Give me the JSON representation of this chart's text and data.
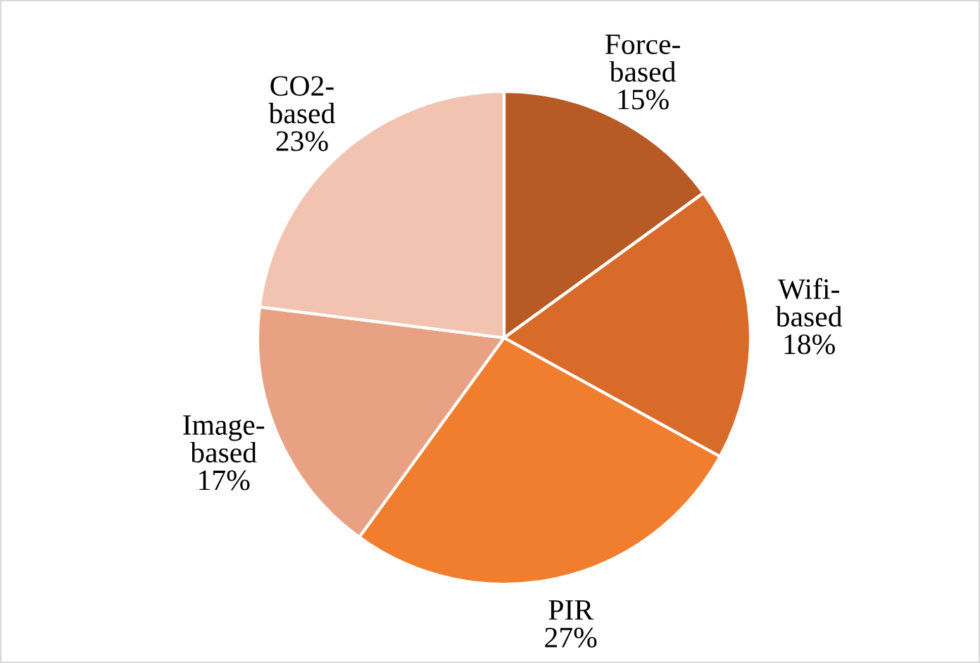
{
  "chart_data": {
    "type": "pie",
    "categories": [
      "Force-\nbased",
      "Wifi-\nbased",
      "PIR",
      "Image-\nbased",
      "CO2-\nbased"
    ],
    "values": [
      15,
      18,
      27,
      17,
      23
    ],
    "colors": [
      "#b85a25",
      "#d96b2a",
      "#f07e2e",
      "#e9a184",
      "#f2c3b1"
    ],
    "value_labels": [
      "15%",
      "18%",
      "27%",
      "17%",
      "23%"
    ],
    "legend": false
  }
}
